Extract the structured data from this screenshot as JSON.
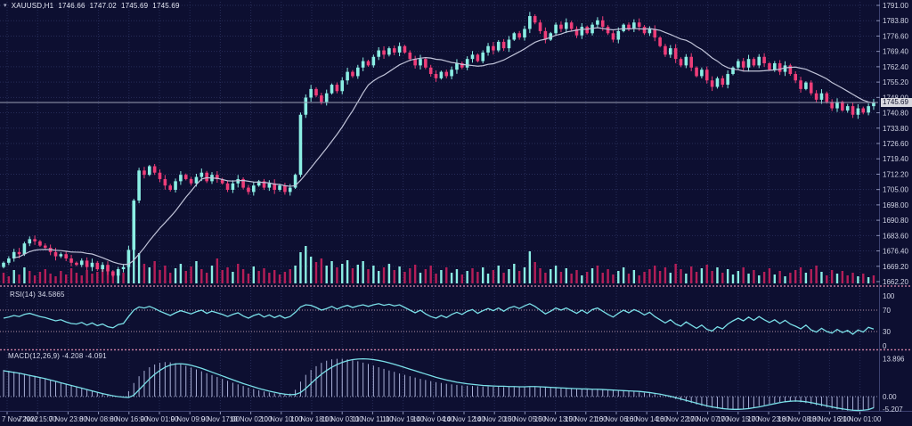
{
  "window": {
    "marker": "▾",
    "title": "XAUUSD,H1",
    "open": "1746.66",
    "high": "1747.02",
    "low": "1745.69",
    "close": "1745.69"
  },
  "colors": {
    "background": "#0d0f31",
    "grid": "#272c58",
    "bull_candle": "#8beee4",
    "bear_candle": "#ee3d78",
    "ma_line": "#c0c3d8",
    "volume_up": "#8beee4",
    "volume_down": "#b51e58",
    "rsi_line": "#7adfe8",
    "macd_signal": "#7adfe8",
    "macd_histogram": "#aab1d8",
    "level_line": "#b593a8",
    "separator": "#c27a9e",
    "axis_text": "#d2d5e6",
    "current_price_line": "#9b9fb5",
    "current_price_tag_bg": "#d8d8df"
  },
  "price_axis": {
    "labels": [
      "1791.00",
      "1783.80",
      "1776.60",
      "1769.40",
      "1762.40",
      "1755.20",
      "1748.00",
      "1740.80",
      "1733.80",
      "1726.60",
      "1719.40",
      "1712.20",
      "1705.00",
      "1698.00",
      "1690.80",
      "1683.60",
      "1676.40",
      "1669.20",
      "1662.20"
    ],
    "max": 1791.0,
    "min": 1662.2,
    "current": "1745.69",
    "current_value": 1745.69
  },
  "time_axis": {
    "labels": [
      "7 Nov 2022",
      "7 Nov 15:00",
      "7 Nov 23:00",
      "8 Nov 08:00",
      "8 Nov 16:00",
      "9 Nov 01:00",
      "9 Nov 09:00",
      "9 Nov 17:00",
      "10 Nov 02:00",
      "10 Nov 10:00",
      "10 Nov 18:00",
      "11 Nov 03:00",
      "11 Nov 11:00",
      "11 Nov 19:00",
      "14 Nov 04:00",
      "14 Nov 12:00",
      "14 Nov 20:00",
      "15 Nov 05:00",
      "15 Nov 13:00",
      "15 Nov 21:00",
      "16 Nov 06:00",
      "16 Nov 14:00",
      "16 Nov 22:00",
      "17 Nov 07:00",
      "17 Nov 15:00",
      "17 Nov 23:00",
      "18 Nov 08:00",
      "18 Nov 16:00",
      "21 Nov 01:00"
    ]
  },
  "panes": {
    "rsi": {
      "label": "RSI(14) 34.5865",
      "axis_labels": [
        "100",
        "70",
        "30",
        "0"
      ],
      "level_lines": [
        70,
        30
      ],
      "last": 34.5865
    },
    "macd": {
      "label": "MACD(12,26,9) -4.208 -4.091",
      "axis_labels": [
        "13.896",
        "0.00",
        "-5.207"
      ],
      "max": 13.896,
      "min": -5.207,
      "last_main": -4.208,
      "last_signal": -4.091
    }
  },
  "chart_data": [
    {
      "type": "candlestick",
      "title": "XAUUSD,H1",
      "ylim": [
        1662.2,
        1791.0
      ],
      "open_first": 1669,
      "ma_period": 14,
      "closes": [
        1671,
        1673,
        1676,
        1675,
        1680,
        1682,
        1681,
        1679,
        1678,
        1676,
        1674,
        1675,
        1673,
        1671,
        1670,
        1672,
        1669,
        1671,
        1668,
        1670,
        1667,
        1665,
        1668,
        1669,
        1677,
        1700,
        1714,
        1712,
        1716,
        1713,
        1710,
        1707,
        1705,
        1709,
        1712,
        1710,
        1708,
        1711,
        1713,
        1709,
        1712,
        1710,
        1708,
        1705,
        1708,
        1710,
        1706,
        1704,
        1707,
        1709,
        1706,
        1708,
        1705,
        1707,
        1704,
        1706,
        1712,
        1740,
        1748,
        1752,
        1749,
        1746,
        1750,
        1754,
        1751,
        1756,
        1760,
        1758,
        1762,
        1765,
        1763,
        1767,
        1770,
        1768,
        1771,
        1769,
        1772,
        1769,
        1766,
        1763,
        1766,
        1762,
        1759,
        1757,
        1760,
        1758,
        1761,
        1764,
        1762,
        1766,
        1768,
        1765,
        1769,
        1772,
        1770,
        1774,
        1771,
        1775,
        1778,
        1776,
        1780,
        1786,
        1783,
        1779,
        1775,
        1778,
        1782,
        1780,
        1783,
        1780,
        1777,
        1781,
        1778,
        1782,
        1784,
        1781,
        1778,
        1775,
        1779,
        1782,
        1780,
        1783,
        1781,
        1778,
        1780,
        1776,
        1772,
        1768,
        1771,
        1766,
        1763,
        1767,
        1762,
        1758,
        1761,
        1756,
        1753,
        1757,
        1754,
        1759,
        1762,
        1765,
        1762,
        1766,
        1763,
        1767,
        1764,
        1761,
        1764,
        1760,
        1763,
        1759,
        1756,
        1752,
        1755,
        1750,
        1747,
        1750,
        1746,
        1743,
        1746,
        1742,
        1744,
        1740,
        1743,
        1741,
        1744,
        1745.69
      ],
      "volumes": [
        12,
        8,
        15,
        10,
        18,
        14,
        9,
        13,
        16,
        11,
        8,
        14,
        10,
        17,
        12,
        9,
        15,
        11,
        13,
        18,
        14,
        10,
        16,
        12,
        26,
        38,
        34,
        22,
        18,
        25,
        15,
        20,
        12,
        17,
        22,
        14,
        19,
        25,
        16,
        12,
        20,
        28,
        15,
        18,
        13,
        22,
        16,
        11,
        19,
        14,
        17,
        12,
        15,
        10,
        13,
        16,
        20,
        35,
        42,
        30,
        24,
        28,
        20,
        25,
        18,
        22,
        26,
        17,
        21,
        25,
        16,
        20,
        14,
        18,
        22,
        15,
        19,
        13,
        17,
        21,
        12,
        16,
        20,
        11,
        15,
        18,
        12,
        16,
        10,
        14,
        17,
        13,
        18,
        11,
        15,
        20,
        12,
        16,
        22,
        14,
        18,
        36,
        24,
        17,
        12,
        16,
        20,
        13,
        17,
        11,
        15,
        9,
        13,
        17,
        20,
        12,
        16,
        10,
        14,
        18,
        11,
        15,
        9,
        13,
        16,
        20,
        14,
        18,
        12,
        22,
        16,
        11,
        19,
        13,
        17,
        21,
        14,
        18,
        12,
        16,
        10,
        14,
        18,
        11,
        15,
        9,
        13,
        17,
        10,
        14,
        8,
        12,
        15,
        18,
        12,
        16,
        20,
        13,
        9,
        15,
        11,
        14,
        9,
        12,
        8,
        11,
        7,
        9
      ]
    },
    {
      "type": "line",
      "name": "RSI(14)",
      "ylim": [
        0,
        100
      ],
      "levels": [
        30,
        70
      ],
      "values": [
        55,
        57,
        60,
        58,
        62,
        64,
        61,
        58,
        56,
        53,
        50,
        52,
        48,
        45,
        44,
        47,
        42,
        46,
        41,
        44,
        39,
        37,
        43,
        45,
        58,
        70,
        76,
        74,
        77,
        73,
        68,
        64,
        60,
        65,
        69,
        66,
        63,
        67,
        70,
        64,
        68,
        65,
        62,
        58,
        62,
        65,
        59,
        55,
        60,
        63,
        57,
        61,
        56,
        60,
        55,
        58,
        66,
        76,
        80,
        79,
        75,
        70,
        73,
        77,
        72,
        76,
        79,
        75,
        78,
        80,
        77,
        80,
        82,
        79,
        81,
        78,
        80,
        75,
        70,
        65,
        70,
        63,
        58,
        55,
        60,
        56,
        62,
        66,
        62,
        68,
        71,
        64,
        69,
        73,
        69,
        74,
        68,
        74,
        77,
        73,
        78,
        82,
        77,
        70,
        63,
        68,
        74,
        70,
        74,
        69,
        64,
        70,
        64,
        71,
        74,
        68,
        62,
        57,
        64,
        70,
        65,
        71,
        67,
        61,
        66,
        58,
        52,
        46,
        52,
        44,
        40,
        48,
        42,
        36,
        42,
        34,
        31,
        39,
        35,
        44,
        50,
        55,
        50,
        57,
        51,
        58,
        52,
        47,
        52,
        45,
        51,
        44,
        40,
        35,
        42,
        33,
        29,
        36,
        30,
        27,
        34,
        28,
        32,
        25,
        33,
        29,
        38,
        34.59
      ]
    },
    {
      "type": "macd",
      "name": "MACD(12,26,9)",
      "ylim": [
        -5.207,
        13.896
      ],
      "signal": [
        9.5,
        9.2,
        8.9,
        8.6,
        8.2,
        7.8,
        7.4,
        7.0,
        6.6,
        6.1,
        5.6,
        5.1,
        4.6,
        4.1,
        3.6,
        3.1,
        2.6,
        2.1,
        1.6,
        1.1,
        0.7,
        0.3,
        0.0,
        -0.2,
        -0.3,
        0.5,
        2.5,
        4.5,
        6.5,
        8.2,
        9.6,
        10.8,
        11.6,
        12.0,
        12.1,
        11.9,
        11.5,
        11.0,
        10.4,
        9.7,
        9.0,
        8.3,
        7.6,
        6.9,
        6.2,
        5.5,
        4.8,
        4.2,
        3.6,
        3.0,
        2.5,
        2.0,
        1.6,
        1.2,
        0.9,
        0.7,
        0.8,
        1.5,
        3.0,
        4.8,
        6.6,
        8.2,
        9.6,
        10.8,
        11.8,
        12.6,
        13.2,
        13.6,
        13.8,
        13.9,
        13.8,
        13.6,
        13.3,
        12.9,
        12.4,
        11.9,
        11.3,
        10.7,
        10.1,
        9.5,
        8.9,
        8.3,
        7.7,
        7.1,
        6.6,
        6.1,
        5.7,
        5.3,
        5.0,
        4.7,
        4.5,
        4.3,
        4.1,
        4.0,
        3.9,
        3.8,
        3.8,
        3.7,
        3.7,
        3.6,
        3.6,
        3.7,
        3.7,
        3.6,
        3.5,
        3.4,
        3.3,
        3.2,
        3.1,
        3.0,
        2.9,
        2.8,
        2.8,
        2.7,
        2.7,
        2.6,
        2.5,
        2.4,
        2.3,
        2.2,
        2.1,
        2.0,
        1.9,
        1.7,
        1.5,
        1.2,
        0.9,
        0.5,
        0.1,
        -0.4,
        -0.9,
        -1.4,
        -1.9,
        -2.4,
        -2.9,
        -3.4,
        -3.8,
        -4.1,
        -4.4,
        -4.6,
        -4.7,
        -4.7,
        -4.6,
        -4.4,
        -4.1,
        -3.8,
        -3.4,
        -3.0,
        -2.6,
        -2.2,
        -1.9,
        -1.7,
        -1.6,
        -1.7,
        -1.9,
        -2.2,
        -2.6,
        -3.0,
        -3.4,
        -3.8,
        -4.2,
        -4.5,
        -4.8,
        -5.0,
        -5.1,
        -5.0,
        -4.8,
        -4.09
      ],
      "histogram": [
        9.8,
        9.5,
        9.2,
        8.8,
        8.4,
        8.0,
        7.6,
        7.2,
        6.7,
        6.2,
        5.7,
        5.2,
        4.7,
        4.2,
        3.7,
        3.2,
        2.7,
        2.2,
        1.7,
        1.2,
        0.8,
        0.4,
        0.1,
        -0.1,
        2.0,
        5.0,
        7.5,
        9.5,
        10.8,
        11.8,
        12.4,
        12.7,
        12.6,
        12.3,
        11.8,
        11.3,
        10.7,
        10.0,
        9.3,
        8.6,
        7.9,
        7.2,
        6.5,
        5.8,
        5.1,
        4.5,
        3.9,
        3.3,
        2.8,
        2.3,
        1.9,
        1.5,
        1.2,
        1.0,
        0.9,
        1.1,
        2.5,
        5.5,
        8.0,
        9.8,
        11.2,
        12.4,
        13.2,
        13.7,
        13.9,
        13.9,
        13.7,
        13.4,
        13.0,
        12.5,
        12.0,
        11.4,
        10.8,
        10.2,
        9.6,
        9.1,
        8.5,
        8.0,
        7.5,
        7.0,
        6.5,
        6.1,
        5.7,
        5.3,
        5.0,
        4.7,
        4.5,
        4.3,
        4.1,
        4.0,
        3.9,
        3.8,
        3.7,
        3.7,
        3.6,
        3.6,
        3.5,
        3.5,
        3.5,
        3.4,
        3.4,
        3.5,
        3.5,
        3.4,
        3.3,
        3.2,
        3.1,
        3.0,
        2.9,
        2.9,
        2.8,
        2.7,
        2.7,
        2.6,
        2.6,
        2.5,
        2.4,
        2.3,
        2.2,
        2.1,
        2.0,
        1.8,
        1.6,
        1.4,
        1.2,
        0.9,
        0.5,
        0.1,
        -0.4,
        -0.9,
        -1.4,
        -1.9,
        -2.4,
        -2.9,
        -3.4,
        -3.8,
        -4.1,
        -4.4,
        -4.6,
        -4.75,
        -4.8,
        -4.7,
        -4.5,
        -4.2,
        -3.9,
        -3.5,
        -3.1,
        -2.7,
        -2.3,
        -2.0,
        -1.8,
        -1.75,
        -1.9,
        -2.1,
        -2.4,
        -2.8,
        -3.2,
        -3.6,
        -4.0,
        -4.4,
        -4.7,
        -5.0,
        -5.15,
        -5.2,
        -5.1,
        -4.9,
        -4.6,
        -4.21
      ]
    }
  ]
}
